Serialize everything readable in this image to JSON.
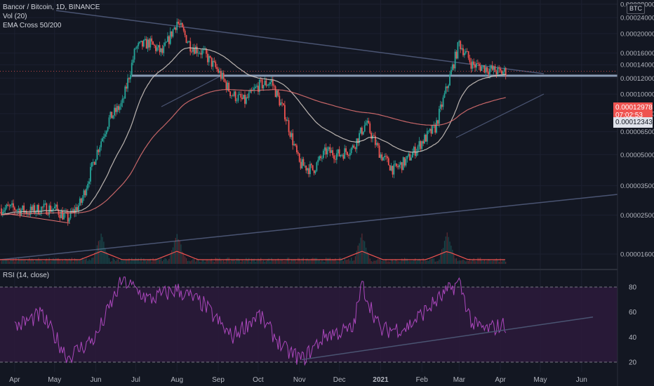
{
  "header": {
    "symbol_line": "Bancor / Bitcoin, 1D, BINANCE",
    "vol_label": "Vol (20)",
    "ema_label": "EMA Cross 50/200",
    "rsi_label": "RSI (14, close)",
    "currency": "BTC"
  },
  "price_tags": {
    "current_price": "0.00012978",
    "countdown": "07:02:53",
    "level_price": "0.00012343"
  },
  "colors": {
    "background": "#131722",
    "candle_up": "#26a69a",
    "candle_down": "#ef5350",
    "ema_fast": "#d8cfc8",
    "ema_slow": "#e57373",
    "trendline": "#4a5472",
    "support_line": "#8a9bb5",
    "rsi_line": "#ab47bc",
    "rsi_band": "#2b1a3a",
    "current_price_tag": "#ef5350",
    "level_price_tag": "#e0e3eb"
  },
  "chart_data": [
    {
      "type": "candlestick",
      "name": "price",
      "y_scale": "log",
      "y_ticks": [
        "0.00028000",
        "0.00024000",
        "0.00020000",
        "0.00016000",
        "0.00014000",
        "0.00012000",
        "0.00010000",
        "0.00008000",
        "0.00006500",
        "0.00005000",
        "0.00003500",
        "0.00002500",
        "0.00001600"
      ],
      "x_ticks": [
        "Apr",
        "May",
        "Jun",
        "Jul",
        "Aug",
        "Sep",
        "Oct",
        "Nov",
        "Dec",
        "2021",
        "Feb",
        "Mar",
        "Apr",
        "May",
        "Jun"
      ],
      "x": [
        "2020-04-01",
        "2020-04-11",
        "2020-04-21",
        "2020-05-01",
        "2020-05-11",
        "2020-05-21",
        "2020-06-01",
        "2020-06-11",
        "2020-06-21",
        "2020-07-01",
        "2020-07-11",
        "2020-07-21",
        "2020-08-01",
        "2020-08-11",
        "2020-08-21",
        "2020-09-01",
        "2020-09-11",
        "2020-09-21",
        "2020-10-01",
        "2020-10-11",
        "2020-10-21",
        "2020-11-01",
        "2020-11-11",
        "2020-11-21",
        "2020-12-01",
        "2020-12-11",
        "2020-12-21",
        "2021-01-01",
        "2021-01-11",
        "2021-01-21",
        "2021-02-01",
        "2021-02-11",
        "2021-02-21",
        "2021-03-01",
        "2021-03-11",
        "2021-03-21",
        "2021-04-01",
        "2021-04-05"
      ],
      "close": [
        2.7e-05,
        2.6e-05,
        2.7e-05,
        2.7e-05,
        2.4e-05,
        2.9e-05,
        5e-05,
        7.5e-05,
        9e-05,
        0.00017,
        0.00018,
        0.00016,
        0.00023,
        0.000175,
        0.00016,
        0.00013,
        0.0001,
        9.2e-05,
        0.00011,
        0.000115,
        8e-05,
        4.5e-05,
        4.2e-05,
        5.2e-05,
        5e-05,
        5.4e-05,
        7.2e-05,
        5e-05,
        4.2e-05,
        4.7e-05,
        5.8e-05,
        6.8e-05,
        0.000115,
        0.00018,
        0.00014,
        0.000135,
        0.000128,
        0.00013
      ],
      "volume_peak_dates": [
        "2020-06-05",
        "2020-08-01",
        "2020-12-18",
        "2021-02-20"
      ],
      "support_level": 0.00012343,
      "last_price": 0.00012978
    },
    {
      "type": "line",
      "name": "RSI",
      "y_ticks": [
        "80",
        "60",
        "40",
        "20"
      ],
      "band": [
        20,
        80
      ],
      "x": [
        "2020-04-01",
        "2020-04-21",
        "2020-05-11",
        "2020-06-01",
        "2020-06-21",
        "2020-07-11",
        "2020-08-01",
        "2020-08-21",
        "2020-09-11",
        "2020-10-01",
        "2020-10-21",
        "2020-11-03",
        "2020-11-21",
        "2020-12-11",
        "2020-12-18",
        "2021-01-01",
        "2021-01-21",
        "2021-02-11",
        "2021-03-01",
        "2021-03-11",
        "2021-03-21",
        "2021-04-05"
      ],
      "values": [
        48,
        58,
        24,
        40,
        86,
        70,
        78,
        66,
        40,
        58,
        30,
        22,
        42,
        46,
        82,
        45,
        48,
        68,
        84,
        50,
        46,
        50
      ]
    }
  ]
}
